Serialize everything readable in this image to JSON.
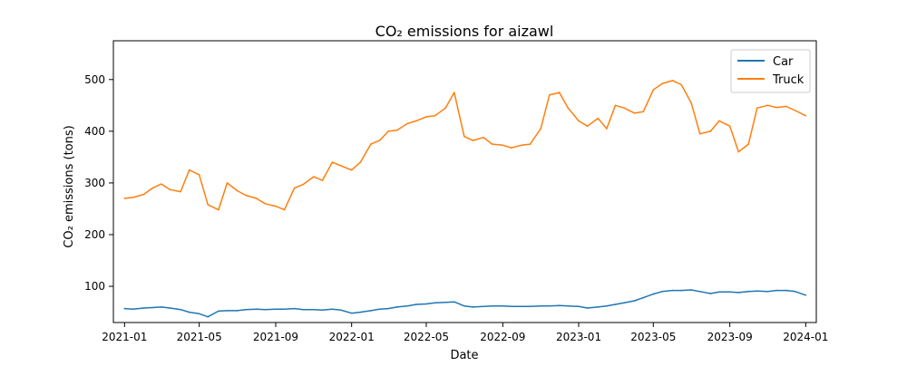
{
  "chart_data": {
    "type": "line",
    "title": "CO₂ emissions for aizawl",
    "xlabel": "Date",
    "ylabel": "CO₂ emissions (tons)",
    "x_ticks": [
      "2021-01",
      "2021-05",
      "2021-09",
      "2022-01",
      "2022-05",
      "2022-09",
      "2023-01",
      "2023-05",
      "2023-09",
      "2024-01"
    ],
    "y_ticks": [
      100,
      200,
      300,
      400,
      500
    ],
    "ylim": [
      30,
      575
    ],
    "xlim": [
      "2020-12-14",
      "2024-01-18"
    ],
    "grid": false,
    "legend_position": "top-right",
    "colors": {
      "Car": "#1f77b4",
      "Truck": "#ff7f0e"
    },
    "x": [
      "2021-01-01",
      "2021-01-15",
      "2021-02-01",
      "2021-02-15",
      "2021-03-01",
      "2021-03-15",
      "2021-04-01",
      "2021-04-15",
      "2021-05-01",
      "2021-05-15",
      "2021-06-01",
      "2021-06-15",
      "2021-07-01",
      "2021-07-15",
      "2021-08-01",
      "2021-08-15",
      "2021-09-01",
      "2021-09-15",
      "2021-10-01",
      "2021-10-15",
      "2021-11-01",
      "2021-11-15",
      "2021-12-01",
      "2021-12-15",
      "2022-01-01",
      "2022-01-15",
      "2022-02-01",
      "2022-02-15",
      "2022-03-01",
      "2022-03-15",
      "2022-04-01",
      "2022-04-15",
      "2022-05-01",
      "2022-05-15",
      "2022-06-01",
      "2022-06-15",
      "2022-07-01",
      "2022-07-15",
      "2022-08-01",
      "2022-08-15",
      "2022-09-01",
      "2022-09-15",
      "2022-10-01",
      "2022-10-15",
      "2022-11-01",
      "2022-11-15",
      "2022-12-01",
      "2022-12-15",
      "2023-01-01",
      "2023-01-15",
      "2023-02-01",
      "2023-02-15",
      "2023-03-01",
      "2023-03-15",
      "2023-04-01",
      "2023-04-15",
      "2023-05-01",
      "2023-05-15",
      "2023-06-01",
      "2023-06-15",
      "2023-07-01",
      "2023-07-15",
      "2023-08-01",
      "2023-08-15",
      "2023-09-01",
      "2023-09-15",
      "2023-10-01",
      "2023-10-15",
      "2023-11-01",
      "2023-11-15",
      "2023-12-01",
      "2023-12-15",
      "2024-01-01"
    ],
    "series": [
      {
        "name": "Car",
        "values": [
          57,
          56,
          58,
          59,
          60,
          58,
          55,
          50,
          47,
          41,
          52,
          53,
          53,
          55,
          56,
          55,
          56,
          56,
          57,
          55,
          55,
          54,
          56,
          54,
          48,
          50,
          53,
          56,
          57,
          60,
          62,
          65,
          66,
          68,
          69,
          70,
          62,
          60,
          61,
          62,
          62,
          61,
          61,
          61,
          62,
          62,
          63,
          62,
          61,
          58,
          60,
          62,
          65,
          68,
          72,
          78,
          85,
          90,
          92,
          92,
          93,
          90,
          86,
          89,
          89,
          88,
          90,
          91,
          90,
          92,
          92,
          90,
          83
        ]
      },
      {
        "name": "Truck",
        "values": [
          270,
          272,
          278,
          290,
          298,
          287,
          283,
          325,
          316,
          258,
          248,
          300,
          285,
          276,
          270,
          260,
          255,
          248,
          290,
          297,
          312,
          305,
          340,
          333,
          325,
          340,
          375,
          382,
          400,
          402,
          415,
          420,
          428,
          430,
          445,
          475,
          390,
          382,
          388,
          375,
          373,
          368,
          373,
          375,
          405,
          470,
          475,
          445,
          420,
          410,
          425,
          405,
          450,
          445,
          435,
          438,
          480,
          492,
          498,
          490,
          455,
          395,
          400,
          420,
          410,
          360,
          375,
          445,
          450,
          446,
          448,
          440,
          430
        ]
      }
    ]
  }
}
